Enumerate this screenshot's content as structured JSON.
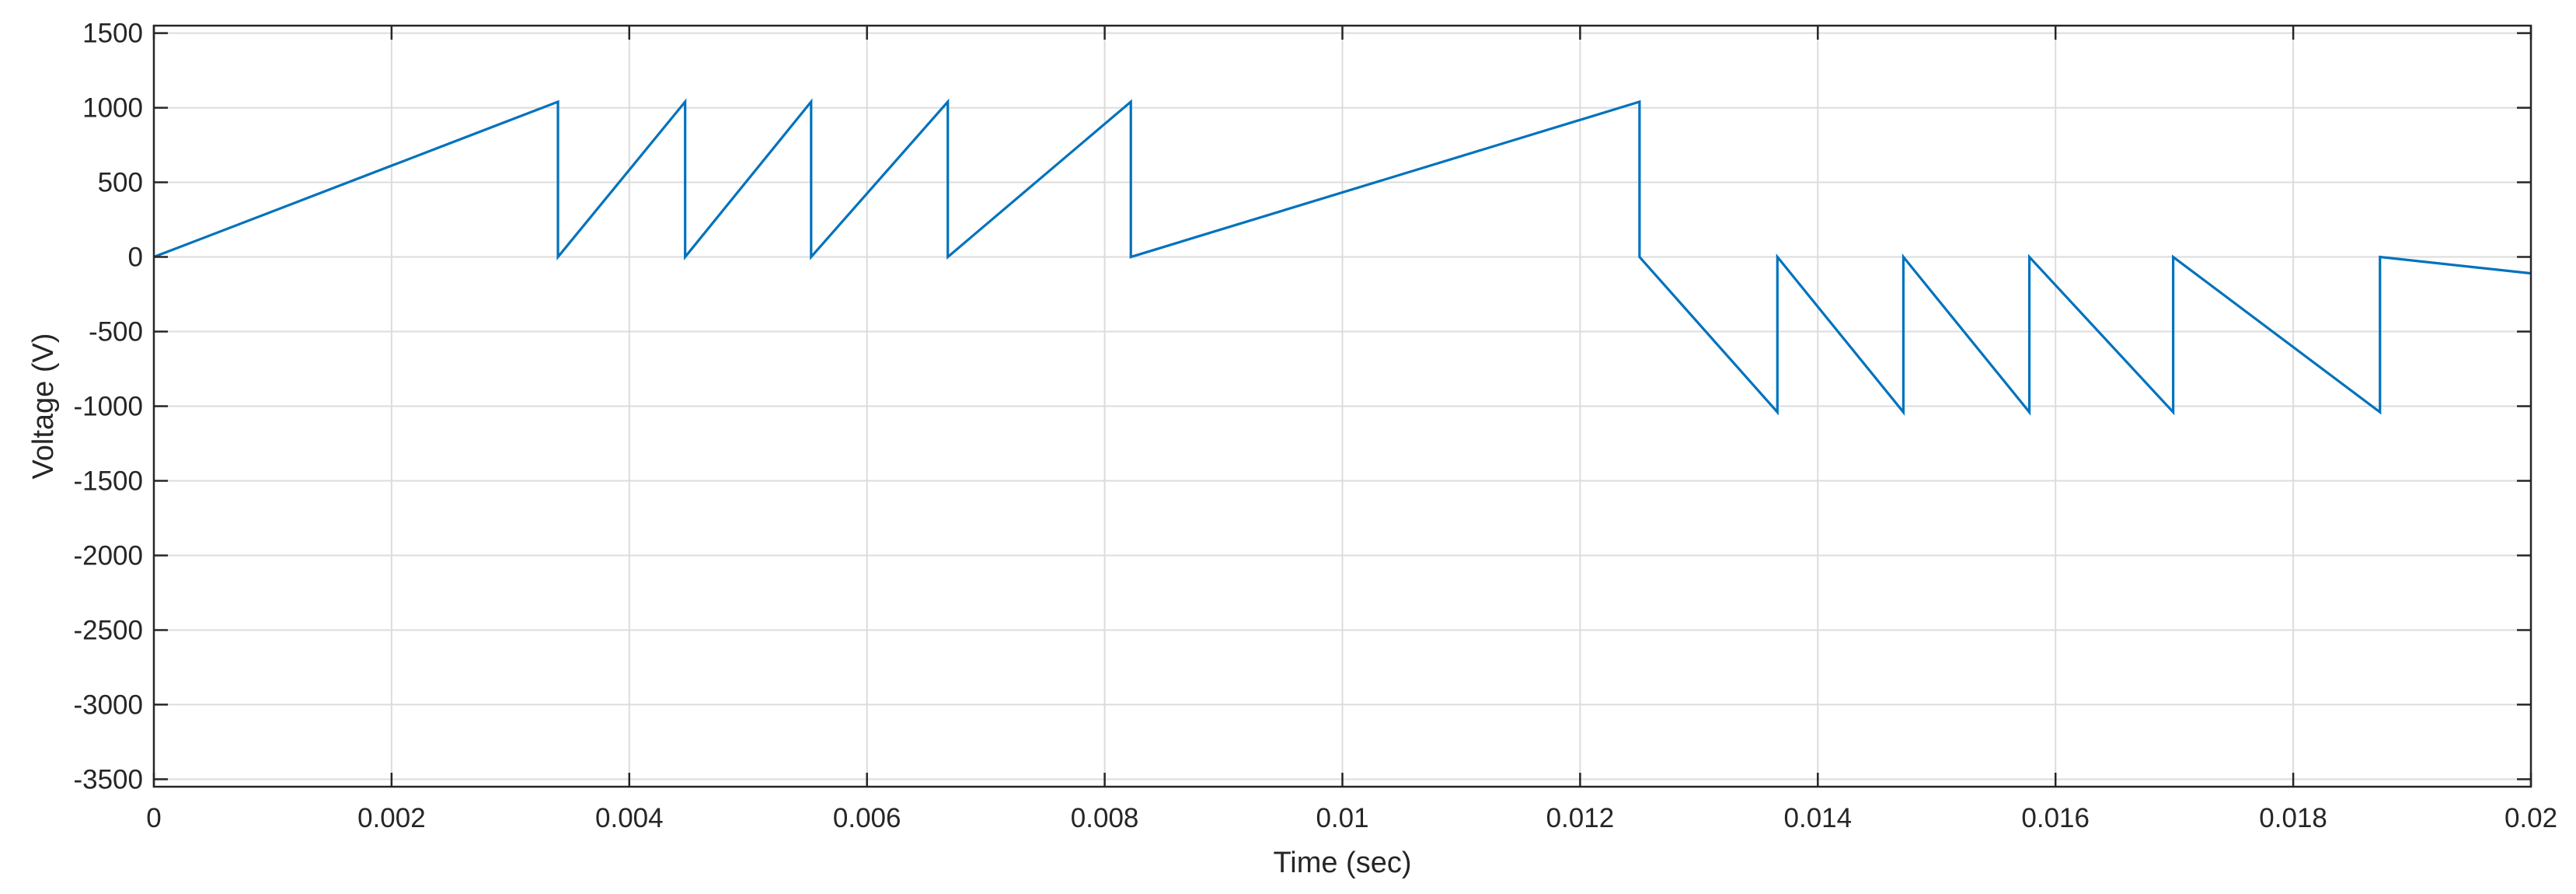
{
  "chart_data": {
    "type": "line",
    "title": "",
    "xlabel": "Time (sec)",
    "ylabel": "Voltage (V)",
    "xlim": [
      0,
      0.02
    ],
    "ylim": [
      -3550,
      1550
    ],
    "xticks": [
      0,
      0.002,
      0.004,
      0.006,
      0.008,
      0.01,
      0.012,
      0.014,
      0.016,
      0.018,
      0.02
    ],
    "xtick_labels": [
      "0",
      "0.002",
      "0.004",
      "0.006",
      "0.008",
      "0.01",
      "0.012",
      "0.014",
      "0.016",
      "0.018",
      "0.02"
    ],
    "yticks": [
      1500,
      1000,
      500,
      0,
      -500,
      -1000,
      -1500,
      -2000,
      -2500,
      -3000,
      -3500
    ],
    "ytick_labels": [
      "1500",
      "1000",
      "500",
      "0",
      "-500",
      "-1000",
      "-1500",
      "-2000",
      "-2500",
      "-3000",
      "-3500"
    ],
    "grid": true,
    "line_color": "#0072BD",
    "series": [
      {
        "x": [
          0,
          0.0034,
          0.0034,
          0.00447,
          0.00447,
          0.00553,
          0.00553,
          0.00668,
          0.00668,
          0.00822,
          0.00822,
          0.0125,
          0.0125,
          0.01366,
          0.01366,
          0.01472,
          0.01472,
          0.01578,
          0.01578,
          0.01699,
          0.01699,
          0.01873,
          0.01873,
          0.02
        ],
        "y": [
          0,
          1040,
          0,
          1040,
          0,
          1040,
          0,
          1040,
          0,
          1040,
          0,
          1040,
          0,
          -1040,
          0,
          -1040,
          0,
          -1040,
          0,
          -1040,
          0,
          -1040,
          0,
          -110
        ]
      }
    ]
  }
}
